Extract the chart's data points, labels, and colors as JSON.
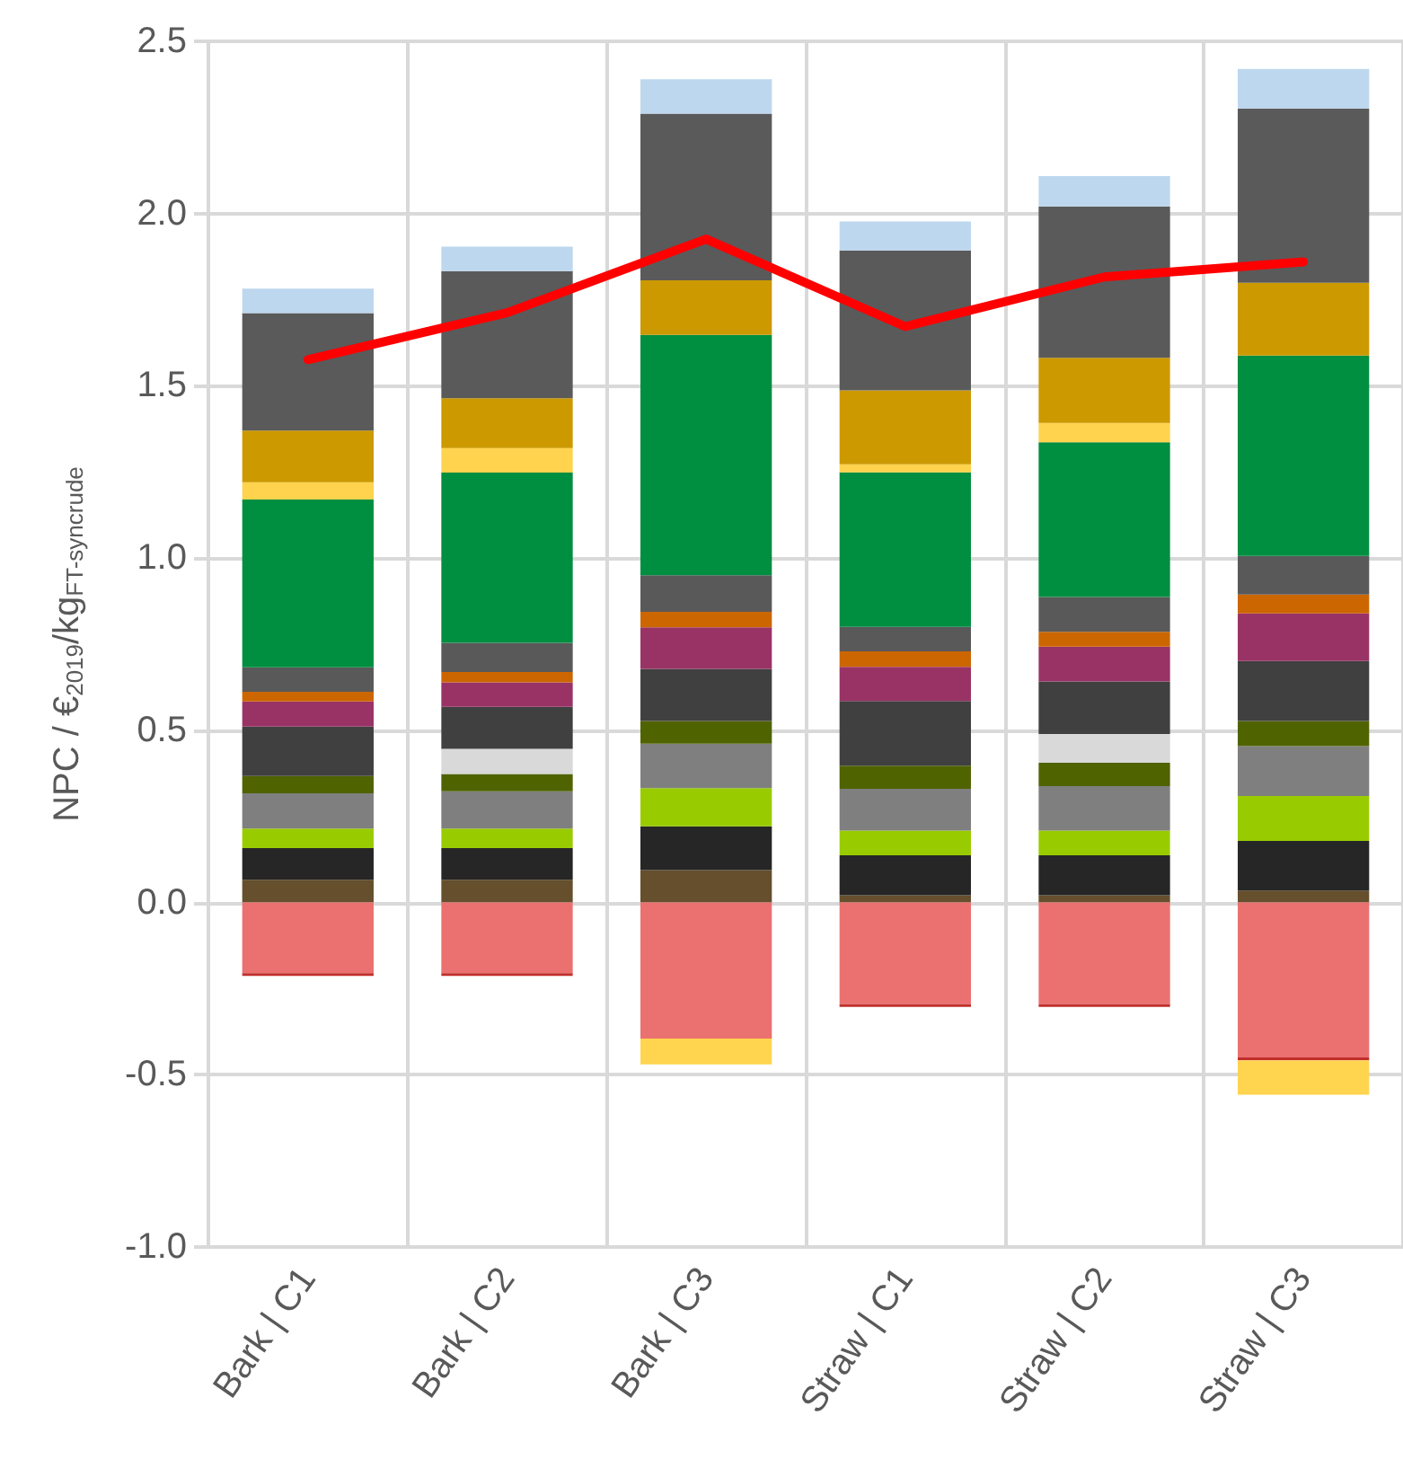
{
  "chart_data": {
    "type": "bar",
    "stacked": true,
    "ylabel": "NPC / €$_{2019}$/kg$_{FT-syncrude}$",
    "categories": [
      "Bark | C1",
      "Bark | C2",
      "Bark | C3",
      "Straw | C1",
      "Straw | C2",
      "Straw | C3"
    ],
    "ylim": [
      -1.0,
      2.5
    ],
    "yticks": [
      {
        "value": -1.0,
        "label": "-1.0"
      },
      -0.5,
      {
        "value": 0,
        "label": "0.0"
      },
      0.5,
      {
        "value": 1.0,
        "label": "1.0"
      },
      1.5,
      {
        "value": 2.0,
        "label": "2.0"
      },
      2.5
    ],
    "grid": true,
    "marker": "none",
    "series": [
      {
        "color": "#654f2c",
        "values": [
          0.066,
          0.066,
          0.094,
          0.021,
          0.021,
          0.035
        ]
      },
      {
        "color": "#262626",
        "values": [
          0.092,
          0.092,
          0.127,
          0.116,
          0.116,
          0.144
        ]
      },
      {
        "color": "#99cc00",
        "values": [
          0.057,
          0.057,
          0.111,
          0.072,
          0.072,
          0.13
        ]
      },
      {
        "color": "#7f7f7f",
        "values": [
          0.102,
          0.108,
          0.129,
          0.121,
          0.129,
          0.145
        ]
      },
      {
        "color": "#4f6300",
        "values": [
          0.05,
          0.05,
          0.066,
          0.067,
          0.068,
          0.073
        ]
      },
      {
        "color": "#d9d9d9",
        "values": [
          null,
          0.073,
          null,
          null,
          0.083,
          null
        ]
      },
      {
        "color": "#404040",
        "values": [
          0.144,
          0.122,
          0.151,
          0.188,
          0.153,
          0.174
        ]
      },
      {
        "color": "#993366",
        "values": [
          0.073,
          0.071,
          0.121,
          0.099,
          0.101,
          0.138
        ]
      },
      {
        "color": "#cc6600",
        "values": [
          0.028,
          0.03,
          0.045,
          0.045,
          0.043,
          0.055
        ]
      },
      {
        "color": "#595959",
        "values": [
          0.071,
          0.085,
          0.106,
          0.071,
          0.101,
          0.112
        ]
      },
      {
        "color": "#008e40",
        "values": [
          0.487,
          0.494,
          0.698,
          0.449,
          0.449,
          0.582
        ]
      },
      {
        "color": "#ffd34d",
        "values": [
          0.05,
          0.071,
          null,
          0.023,
          0.056,
          null
        ]
      },
      {
        "color": "#cc9900",
        "values": [
          0.15,
          0.145,
          0.158,
          0.215,
          0.189,
          0.211
        ]
      },
      {
        "color": "#5a5a5a",
        "values": [
          0.341,
          0.369,
          0.484,
          0.406,
          0.44,
          0.506
        ]
      },
      {
        "color": "#bdd7ee",
        "values": [
          0.071,
          0.071,
          0.1,
          0.084,
          0.088,
          0.115
        ]
      },
      {
        "color": "#eb7070",
        "values": [
          -0.205,
          -0.205,
          -0.395,
          -0.295,
          -0.295,
          -0.45
        ]
      },
      {
        "color": "#c0302b",
        "values": [
          -0.008,
          -0.008,
          null,
          -0.008,
          -0.008,
          -0.008
        ]
      },
      {
        "color": "#ffd54f",
        "values": [
          null,
          null,
          -0.075,
          null,
          null,
          -0.1
        ]
      },
      {
        "type": "line",
        "color": "#ff0000",
        "values": [
          1.576,
          1.712,
          1.926,
          1.672,
          1.816,
          1.86
        ]
      }
    ]
  }
}
